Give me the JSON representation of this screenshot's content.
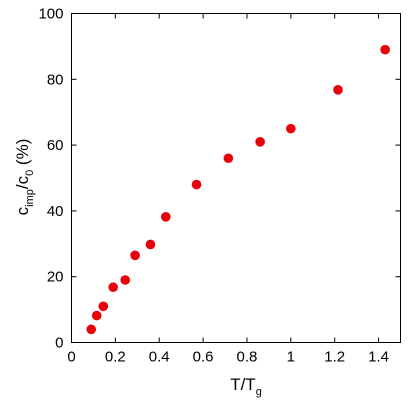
{
  "chart_data": {
    "type": "scatter",
    "xlabel": {
      "main": "T/T",
      "sub": "g"
    },
    "ylabel": {
      "part1": "c",
      "sub1": "imp",
      "part2": "/c",
      "sub2": "0",
      "part3": " (%)"
    },
    "xlim": [
      0,
      1.5
    ],
    "ylim": [
      0,
      100
    ],
    "xticks": [
      "0",
      "0.2",
      "0.4",
      "0.6",
      "0.8",
      "1",
      "1.2",
      "1.4"
    ],
    "xtick_values": [
      0,
      0.2,
      0.4,
      0.6,
      0.8,
      1.0,
      1.2,
      1.4
    ],
    "yticks": [
      "0",
      "20",
      "40",
      "60",
      "80",
      "100"
    ],
    "ytick_values": [
      0,
      20,
      40,
      60,
      80,
      100
    ],
    "grid": false,
    "marker_color": "#e8000b",
    "series": [
      {
        "points": [
          [
            0.09,
            4.0
          ],
          [
            0.115,
            8.2
          ],
          [
            0.145,
            11.0
          ],
          [
            0.19,
            16.8
          ],
          [
            0.245,
            19.0
          ],
          [
            0.29,
            26.5
          ],
          [
            0.36,
            29.8
          ],
          [
            0.43,
            38.2
          ],
          [
            0.57,
            48.0
          ],
          [
            0.715,
            56.0
          ],
          [
            0.86,
            61.0
          ],
          [
            1.0,
            65.0
          ],
          [
            1.215,
            76.8
          ],
          [
            1.43,
            89.0
          ]
        ]
      }
    ]
  }
}
